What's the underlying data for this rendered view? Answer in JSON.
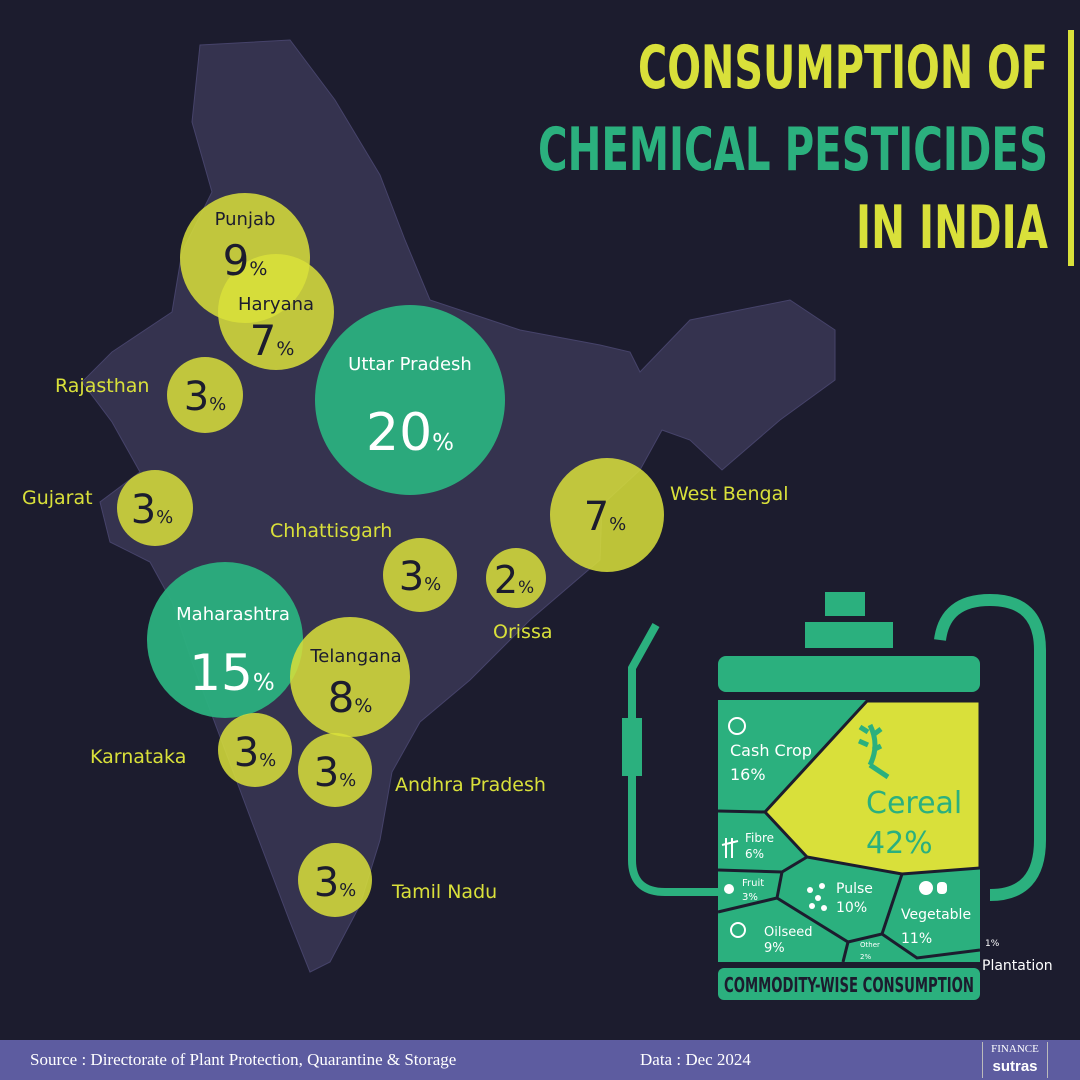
{
  "title": {
    "line1": "CONSUMPTION OF",
    "line2": "CHEMICAL PESTICIDES",
    "line3": "IN INDIA"
  },
  "colors": {
    "background": "#1c1c2e",
    "map": "#35334f",
    "yellow": "#d9e03a",
    "green": "#2bb07e",
    "footer": "#5d5ca0"
  },
  "states": [
    {
      "name": "Punjab",
      "value": "9",
      "unit": "%",
      "color": "yellow"
    },
    {
      "name": "Haryana",
      "value": "7",
      "unit": "%",
      "color": "yellow"
    },
    {
      "name": "Rajasthan",
      "value": "3",
      "unit": "%",
      "color": "yellow"
    },
    {
      "name": "Uttar Pradesh",
      "value": "20",
      "unit": "%",
      "color": "green"
    },
    {
      "name": "Gujarat",
      "value": "3",
      "unit": "%",
      "color": "yellow"
    },
    {
      "name": "West Bengal",
      "value": "7",
      "unit": "%",
      "color": "yellow"
    },
    {
      "name": "Chhattisgarh",
      "value": "3",
      "unit": "%",
      "color": "yellow"
    },
    {
      "name": "Orissa",
      "value": "2",
      "unit": "%",
      "color": "yellow"
    },
    {
      "name": "Maharashtra",
      "value": "15",
      "unit": "%",
      "color": "green"
    },
    {
      "name": "Telangana",
      "value": "8",
      "unit": "%",
      "color": "yellow"
    },
    {
      "name": "Karnataka",
      "value": "3",
      "unit": "%",
      "color": "yellow"
    },
    {
      "name": "Andhra Pradesh",
      "value": "3",
      "unit": "%",
      "color": "yellow"
    },
    {
      "name": "Tamil Nadu",
      "value": "3",
      "unit": "%",
      "color": "yellow"
    }
  ],
  "commodity": {
    "caption": "COMMODITY-WISE CONSUMPTION",
    "items": [
      {
        "name": "Cereal",
        "value": "42%",
        "icon": "wheat-icon"
      },
      {
        "name": "Cash Crop",
        "value": "16%",
        "icon": "cotton-icon"
      },
      {
        "name": "Fibre",
        "value": "6%",
        "icon": "bamboo-icon"
      },
      {
        "name": "Fruit",
        "value": "3%",
        "icon": "fruit-icon"
      },
      {
        "name": "Pulse",
        "value": "10%",
        "icon": "beans-icon"
      },
      {
        "name": "Vegetable",
        "value": "11%",
        "icon": "vegetable-icon"
      },
      {
        "name": "Oilseed",
        "value": "9%",
        "icon": "seed-icon"
      },
      {
        "name": "Other",
        "value": "2%"
      },
      {
        "name": "Plantation",
        "value": "1%"
      }
    ]
  },
  "footer": {
    "source": "Source : Directorate of Plant Protection, Quarantine & Storage",
    "date": "Data : Dec 2024",
    "logo_top": "FINANCE",
    "logo_bottom": "sutras"
  }
}
